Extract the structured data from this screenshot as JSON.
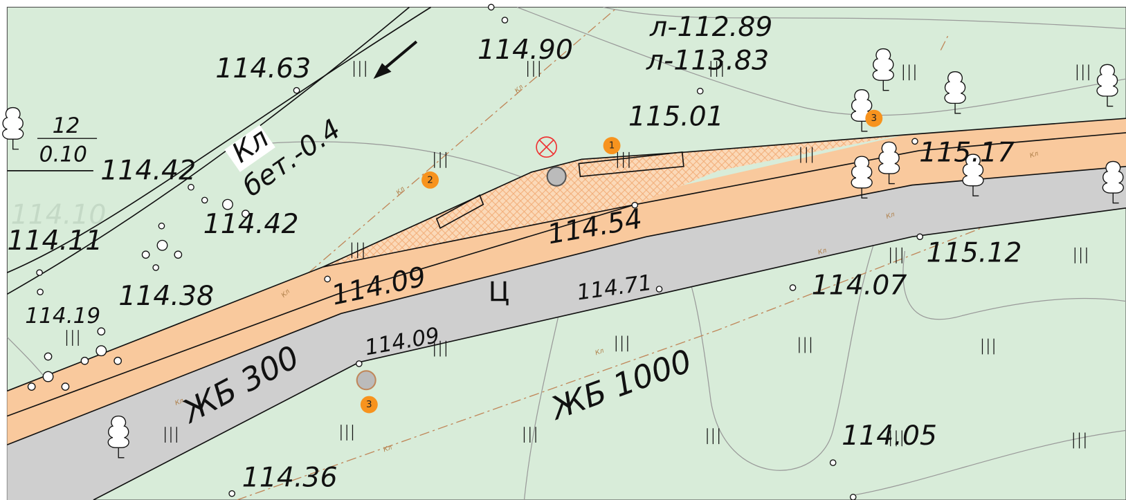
{
  "map": {
    "elevations": [
      "114.63",
      "114.90",
      "115.01",
      "114.42",
      "114.42",
      "114.11",
      "114.38",
      "114.19",
      "114.09",
      "114.09",
      "114.54",
      "115.17",
      "115.12",
      "114.07",
      "114.71",
      "114.05",
      "114.36"
    ],
    "ghost_elevation": "114.10",
    "well_levels": [
      "л-112.89",
      "л-113.83"
    ],
    "fraction": {
      "top": "12",
      "bottom": "0.10"
    },
    "cable_tag": "Кл",
    "cable_depth": "бет.-0.4",
    "pipes": [
      "ЖБ 300",
      "ЖБ 1000"
    ],
    "road_surface": "Ц",
    "line_tag": "Кл",
    "markers": [
      "1",
      "2",
      "3",
      "3"
    ]
  }
}
